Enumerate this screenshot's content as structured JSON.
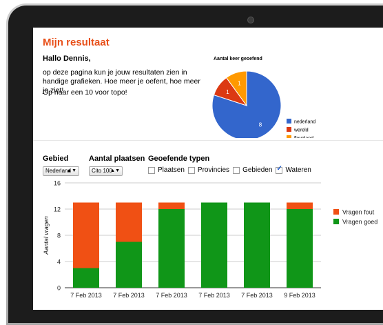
{
  "page": {
    "title": "Mijn resultaat",
    "greeting": "Hallo Dennis,",
    "intro": "op deze pagina kun je jouw resultaten zien in handige grafieken. Hoe meer je oefent, hoe meer je ziet!",
    "goal": "Op naar een 10 voor topo!"
  },
  "controls": {
    "gebied_label": "Gebied",
    "gebied_value": "Nederland",
    "plaatsen_label": "Aantal plaatsen",
    "plaatsen_value": "Cito 100",
    "typen_label": "Geoefende typen",
    "types": [
      {
        "label": "Plaatsen",
        "checked": false
      },
      {
        "label": "Provincies",
        "checked": false
      },
      {
        "label": "Gebieden",
        "checked": false
      },
      {
        "label": "Wateren",
        "checked": true
      }
    ]
  },
  "colors": {
    "accent": "#e8501a",
    "blue": "#3366cc",
    "red": "#dc3912",
    "orange": "#ff9900",
    "green": "#109618",
    "bar_red": "#f05014"
  },
  "chart_data": [
    {
      "type": "pie",
      "title": "Aantal keer geoefend",
      "categories": [
        "nederland",
        "wereld",
        "flevoland"
      ],
      "values": [
        8,
        1,
        1
      ],
      "colors": [
        "#3366cc",
        "#dc3912",
        "#ff9900"
      ],
      "legend": "right"
    },
    {
      "type": "bar",
      "stacked": true,
      "categories": [
        "7 Feb 2013",
        "7 Feb 2013",
        "7 Feb 2013",
        "7 Feb 2013",
        "7 Feb 2013",
        "9 Feb 2013"
      ],
      "series": [
        {
          "name": "Vragen goed",
          "values": [
            3,
            7,
            12,
            13,
            13,
            12
          ],
          "color": "#109618"
        },
        {
          "name": "Vragen fout",
          "values": [
            10,
            6,
            1,
            0,
            0,
            1
          ],
          "color": "#f05014"
        }
      ],
      "legend_order": [
        "Vragen fout",
        "Vragen goed"
      ],
      "ylabel": "Aantal vragen",
      "ylim": [
        0,
        16
      ],
      "yticks": [
        0,
        4,
        8,
        12,
        16
      ],
      "grid": true,
      "legend": "right"
    }
  ]
}
